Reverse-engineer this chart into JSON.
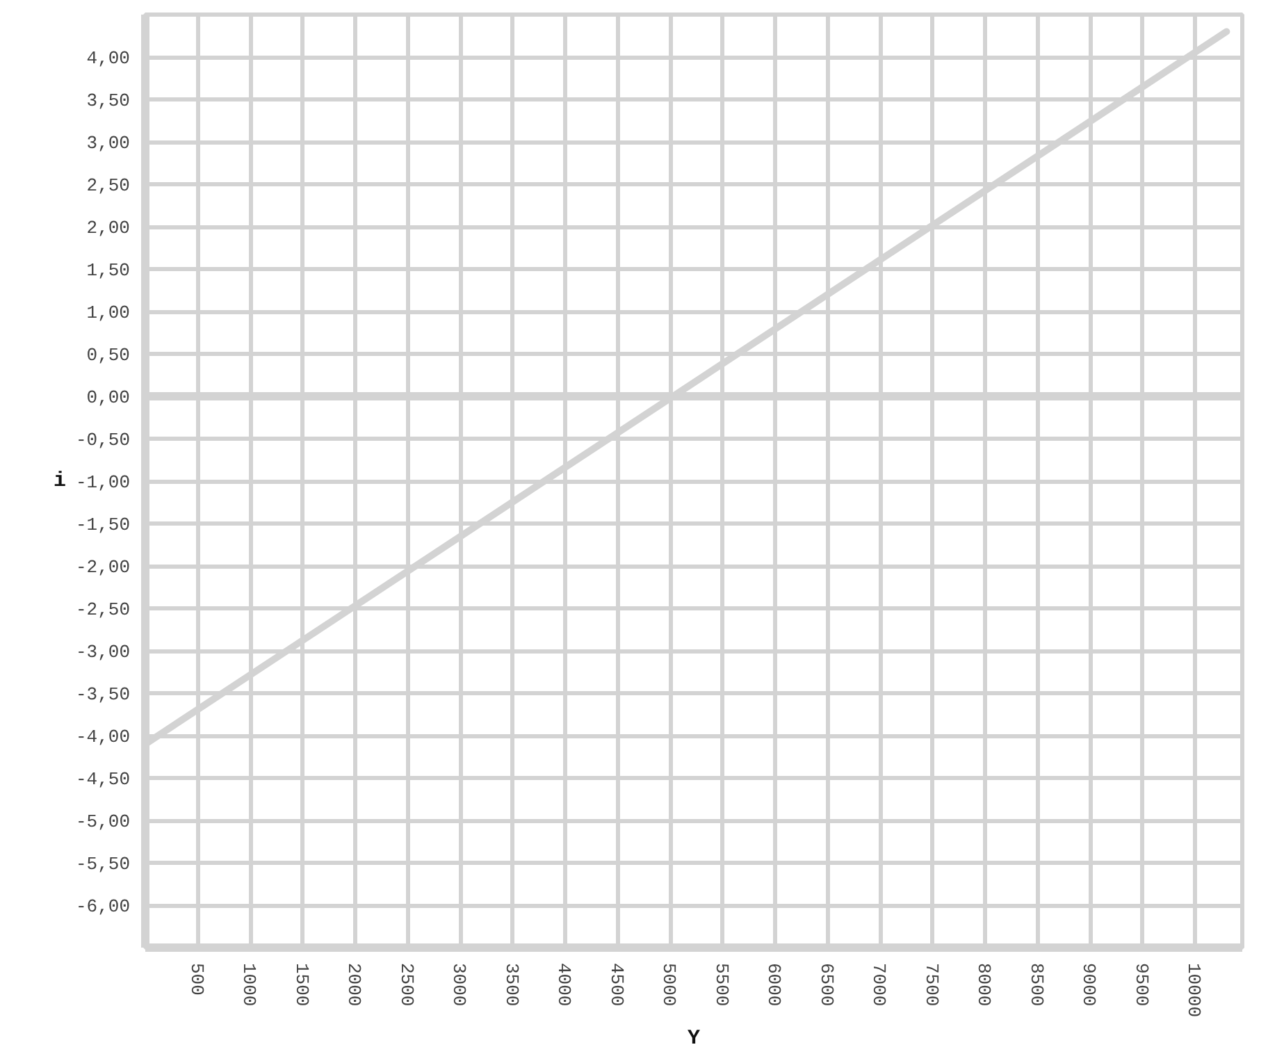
{
  "chart_data": {
    "type": "line",
    "xlabel": "Y",
    "ylabel": "i",
    "x": [
      0,
      10300
    ],
    "series": [
      {
        "color": "#d3d3d3",
        "values": [
          -4.1,
          4.3
        ]
      }
    ],
    "xlim": [
      0,
      10450
    ],
    "ylim": [
      -6.5,
      4.5
    ],
    "xticks": [
      500,
      1000,
      1500,
      2000,
      2500,
      3000,
      3500,
      4000,
      4500,
      5000,
      5500,
      6000,
      6500,
      7000,
      7500,
      8000,
      8500,
      9000,
      9500,
      10000
    ],
    "yticks": [
      {
        "value": 4,
        "label": "4,00"
      },
      {
        "value": 3.5,
        "label": "3,50"
      },
      {
        "value": 3,
        "label": "3,00"
      },
      {
        "value": 2.5,
        "label": "2,50"
      },
      {
        "value": 2,
        "label": "2,00"
      },
      {
        "value": 1.5,
        "label": "1,50"
      },
      {
        "value": 1,
        "label": "1,00"
      },
      {
        "value": 0.5,
        "label": "0,50"
      },
      {
        "value": 0,
        "label": "0,00"
      },
      {
        "value": -0.5,
        "label": "-0,50"
      },
      {
        "value": -1,
        "label": "-1,00"
      },
      {
        "value": -1.5,
        "label": "-1,50"
      },
      {
        "value": -2,
        "label": "-2,00"
      },
      {
        "value": -2.5,
        "label": "-2,50"
      },
      {
        "value": -3,
        "label": "-3,00"
      },
      {
        "value": -3.5,
        "label": "-3,50"
      },
      {
        "value": -4,
        "label": "-4,00"
      },
      {
        "value": -4.5,
        "label": "-4,50"
      },
      {
        "value": -5,
        "label": "-5,00"
      },
      {
        "value": -5.5,
        "label": "-5,50"
      },
      {
        "value": -6,
        "label": "-6,00"
      }
    ],
    "ref_lines": [
      {
        "axis": "y",
        "value": 0,
        "color": "#d3d3d3"
      }
    ],
    "grid": true
  }
}
